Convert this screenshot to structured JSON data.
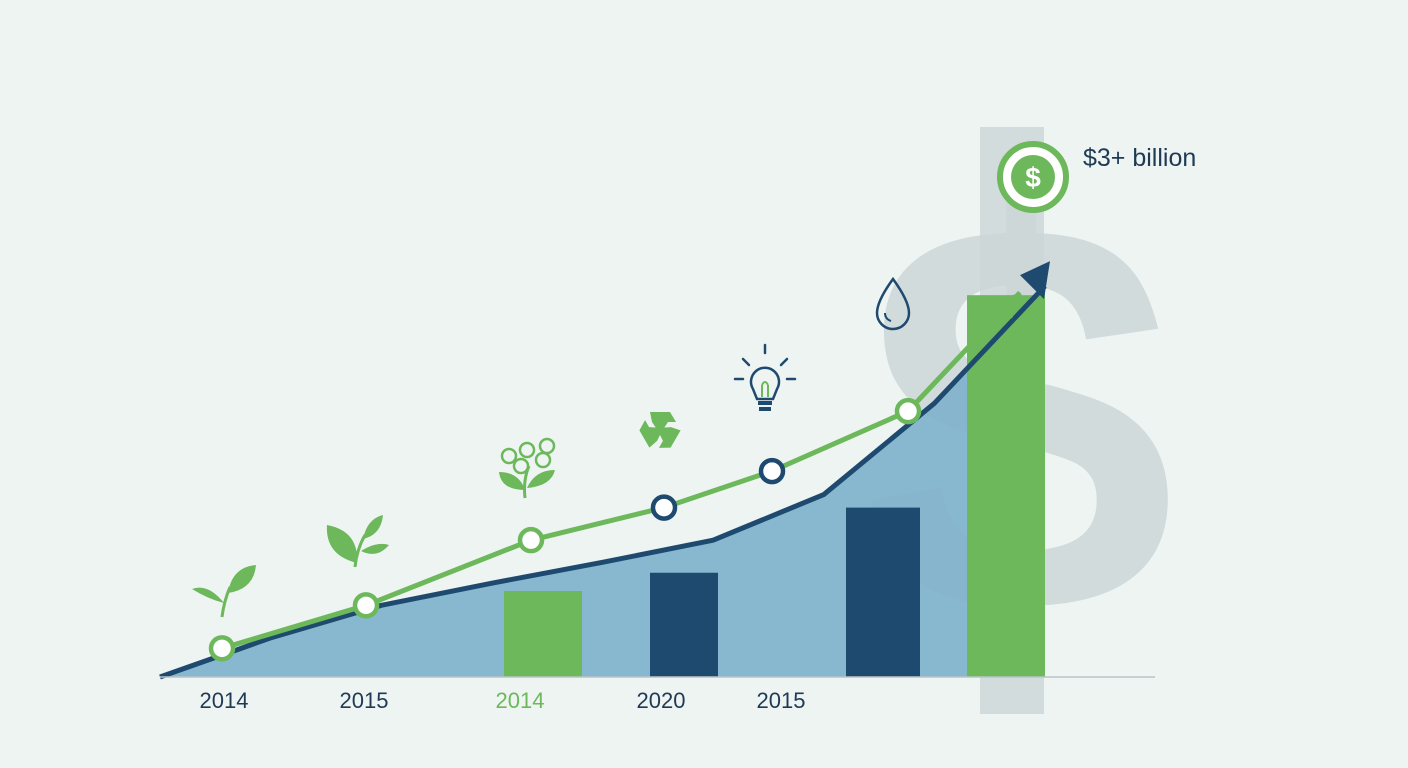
{
  "chart_data": {
    "type": "bar",
    "title": "",
    "xlabel": "",
    "ylabel": "",
    "ylim": [
      0,
      3.2
    ],
    "grid": false,
    "legend": "none",
    "categories": [
      "2014",
      "2015",
      "2014",
      "2020",
      "2015"
    ],
    "area_points": [
      0,
      0.3,
      0.55,
      0.72,
      0.88,
      1.05,
      1.4,
      2.1,
      3.0
    ],
    "bars": [
      {
        "value": 0.66,
        "color": "#6cb85b"
      },
      {
        "value": 0.8,
        "color": "#1f4a70"
      },
      {
        "value": 1.3,
        "color": "#1f4a70"
      },
      {
        "value": 2.93,
        "color": "#6cb85b"
      }
    ],
    "line": [
      0.22,
      0.55,
      1.05,
      1.3,
      1.58,
      2.04,
      2.95
    ],
    "line_markers": [
      {
        "color": "#6cb85b"
      },
      {
        "color": "#6cb85b"
      },
      {
        "color": "#6cb85b"
      },
      {
        "color": "#1f4a70"
      },
      {
        "color": "#1f4a70"
      },
      {
        "color": "#6cb85b"
      }
    ],
    "icons": [
      "sprout-icon",
      "leaves-icon",
      "flower-icon",
      "recycle-icon",
      "lightbulb-icon",
      "water-drop-icon"
    ],
    "callout": {
      "label": "$3+ billion",
      "icon": "dollar-coin-icon"
    },
    "colors": {
      "green": "#6cb85b",
      "navy": "#1f4a70",
      "lightblue": "#7fb2cc",
      "ghost": "#cdd7d8",
      "tick_navy": "#1f3a55"
    },
    "tick_colors": [
      "#1f3a55",
      "#1f3a55",
      "#6cb85b",
      "#1f3a55",
      "#1f3a55"
    ]
  }
}
